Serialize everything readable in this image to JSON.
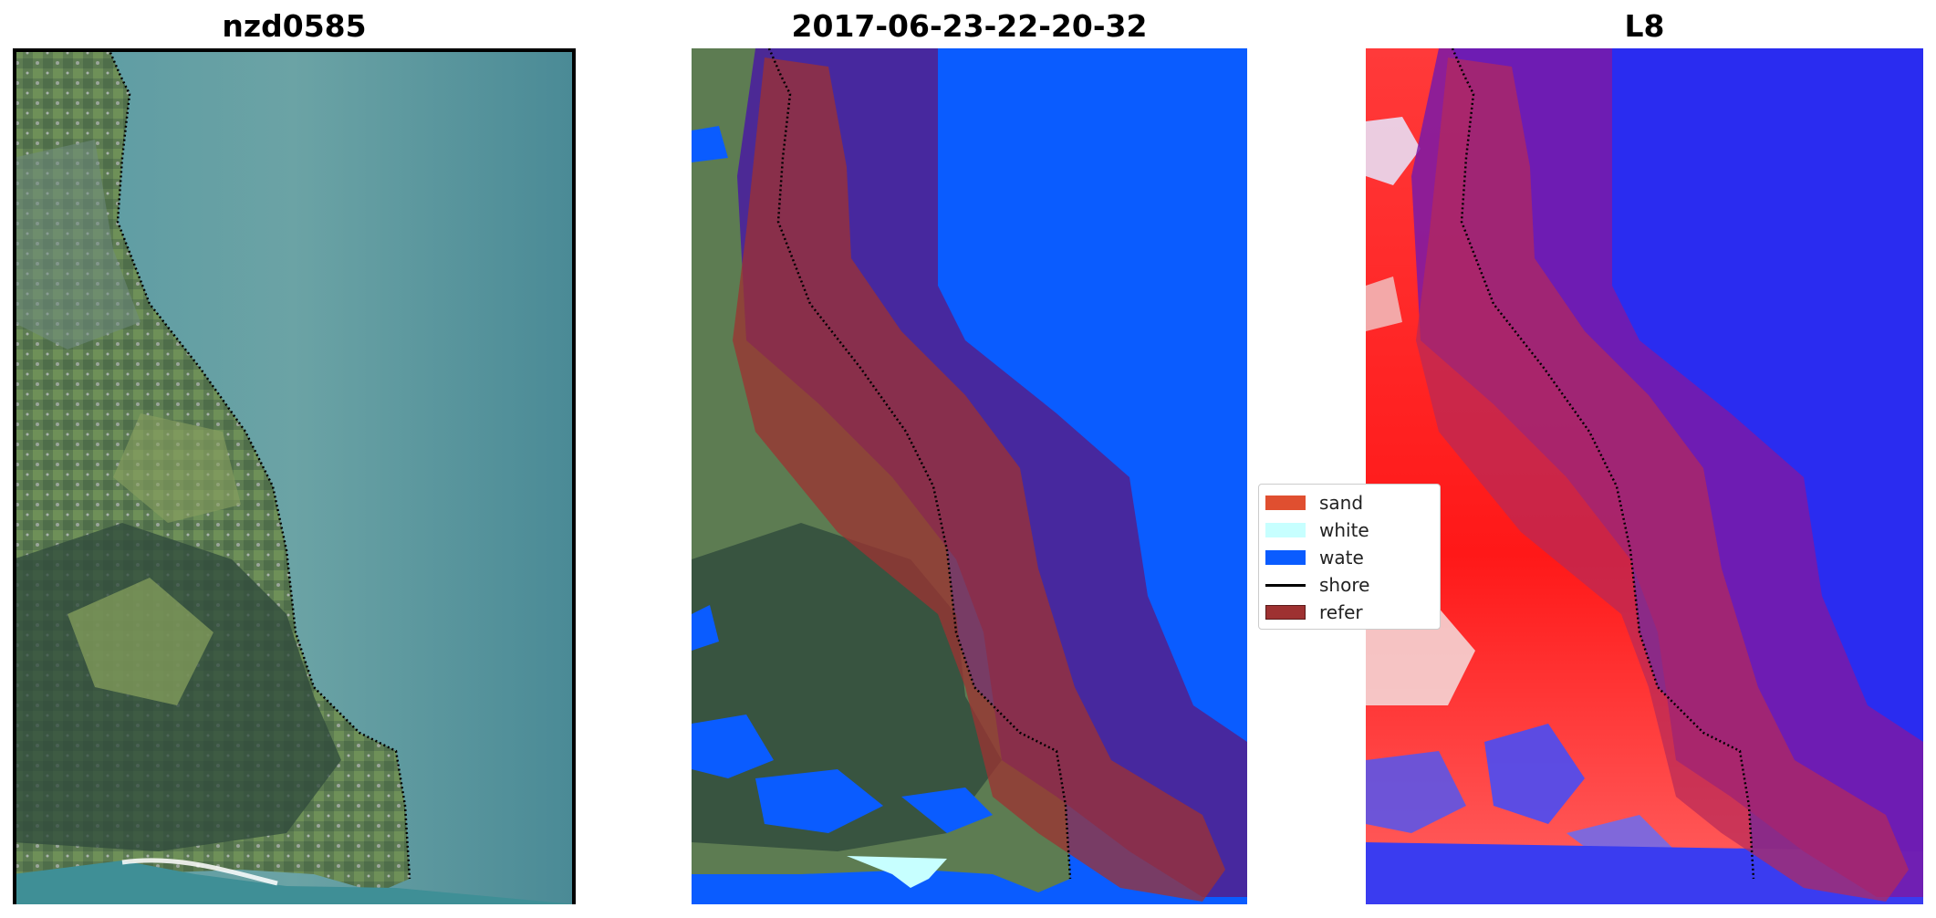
{
  "panels": [
    {
      "title": "nzd0585"
    },
    {
      "title": "2017-06-23-22-20-32"
    },
    {
      "title": "L8"
    }
  ],
  "legend": {
    "items": [
      {
        "label": "sand",
        "color": "#e04f30",
        "kind": "patch"
      },
      {
        "label": "white",
        "color": "#c7ffff",
        "kind": "patch"
      },
      {
        "label": "wate",
        "color": "#0a5cff",
        "kind": "patch"
      },
      {
        "label": "shore",
        "color": "#000000",
        "kind": "line"
      },
      {
        "label": "refer",
        "color": "#9e3131",
        "kind": "patch"
      }
    ]
  },
  "colors": {
    "sea": "#4e8e98",
    "land_green": "#6f8f55",
    "land_dark": "#2f4a3c",
    "urban": "#7d8f8c",
    "water_class": "#0a5cff",
    "reference_overlay": "#9e3131",
    "buffer_purple": "#4b2599",
    "index_red": "#ff2020",
    "index_blue": "#2a2cf0"
  }
}
